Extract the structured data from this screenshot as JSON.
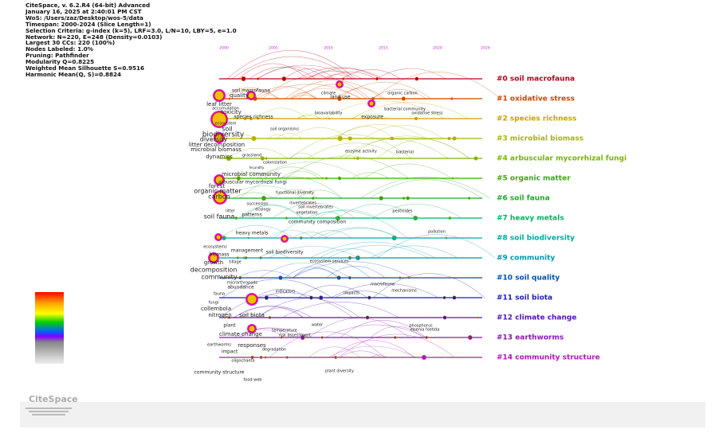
{
  "header": {
    "lines": [
      "CiteSpace, v. 6.2.R4 (64-bit) Advanced",
      "January 16, 2025 at 2:40:01 PM CST",
      "WoS: /Users/zaz/Desktop/wos-5/data",
      "Timespan: 2000-2024 (Slice Length=1)",
      "Selection Criteria: g-index (k=5), LRF=3.0, L/N=10, LBY=5, e=1.0",
      "Network: N=220, E=248 (Density=0.0103)",
      "Largest 30 CCs: 220 (100%)",
      "Nodes Labeled: 1.0%",
      "Pruning: Pathfinder",
      "Modularity Q=0.8225",
      "Weighted Mean Silhouette S=0.9516",
      "Harmonic Mean(Q, S)=0.8824"
    ]
  },
  "timeline": {
    "years": [
      "2000",
      "2005",
      "2010",
      "2015",
      "2020",
      "2024"
    ],
    "clusters": [
      "#0 soil macrofauna",
      "#1 oxidative stress",
      "#2 species richness",
      "#3 microbial biomass",
      "#4 arbuscular mycorrhizal fungi",
      "#5 organic matter",
      "#6 soil fauna",
      "#7 heavy metals",
      "#8 soil biodiversity",
      "#9 community",
      "#10 soil quality",
      "#11 soil biota",
      "#12 climate change",
      "#13 earthworms",
      "#14 community structure"
    ],
    "keywords": [
      "soil macrofauna",
      "quality",
      "climate",
      "land use",
      "organic carbon",
      "leaf litter",
      "accumulation",
      "toxicity",
      "species richness",
      "bioavailability",
      "exposure",
      "bacterial community",
      "oxidative stress",
      "ecosystem",
      "soil",
      "biodiversity",
      "diversity",
      "soil organisms",
      "litter decomposition",
      "microbial biomass",
      "dynamics",
      "grassland",
      "colonization",
      "fecundity",
      "enzyme activity",
      "bacterial",
      "microbial community",
      "arbuscular mycorrhizal fungi",
      "forest",
      "organic matter",
      "carbon",
      "functional diversity",
      "succession",
      "invertebrates",
      "soil invertebrates",
      "ecology",
      "litter",
      "vegetation",
      "patterns",
      "pesticides",
      "soil fauna",
      "community composition",
      "pollution",
      "heavy metals",
      "ecosystems",
      "management",
      "soil biodiversity",
      "biomass",
      "tillage",
      "growth",
      "ecosystem services",
      "decomposition",
      "community",
      "micrarthropods",
      "abundance",
      "macrofauna",
      "mechanisms",
      "fauna",
      "indicators",
      "impacts",
      "fungi",
      "collembola",
      "nitrogen",
      "soil biota",
      "plant",
      "water",
      "phosphorus",
      "eisenia foetida",
      "temperature",
      "risk assessment",
      "climate change",
      "earthworms",
      "responses",
      "degradation",
      "impact",
      "oligochaeta",
      "community structure",
      "plant diversity",
      "food web"
    ]
  },
  "logo": "CiteSpace"
}
